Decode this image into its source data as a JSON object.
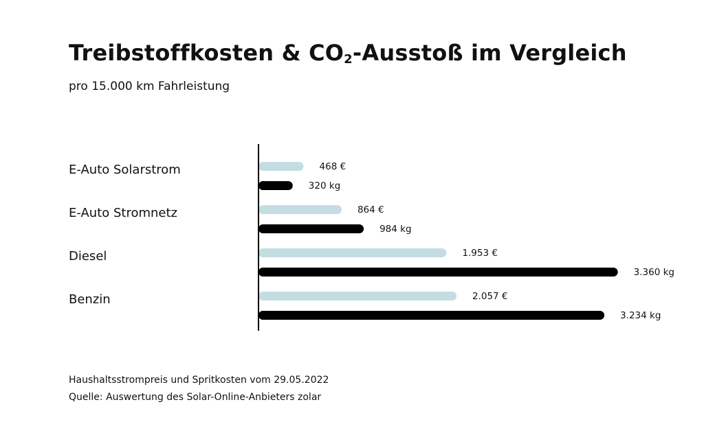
{
  "title": {
    "before": "Treibstoffkosten & CO",
    "sub": "2",
    "after": "-Ausstoß im Vergleich"
  },
  "subtitle": "pro 15.000 km Fahrleistung",
  "footnotes": [
    "Haushaltsstrompreis und Spritkosten vom 29.05.2022",
    "Quelle: Auswertung des Solar-Online-Anbieters zolar"
  ],
  "colors": {
    "costs": "#c3dde2",
    "co2": "#000000"
  },
  "chart_data": {
    "type": "bar",
    "orientation": "horizontal",
    "categories": [
      "E-Auto Solarstrom",
      "E-Auto Stromnetz",
      "Diesel",
      "Benzin"
    ],
    "series": [
      {
        "values": [
          468,
          864,
          1953,
          2057
        ],
        "labels": [
          "468 €",
          "864 €",
          "1.953 €",
          "2.057 €"
        ],
        "color": "#c3dde2",
        "max": 4000
      },
      {
        "values": [
          320,
          984,
          3360,
          3234
        ],
        "labels": [
          "320 kg",
          "984 kg",
          "3.360 kg",
          "3.234 kg"
        ],
        "color": "#000000",
        "max": 3600
      }
    ],
    "grid": false,
    "legend": "none"
  }
}
